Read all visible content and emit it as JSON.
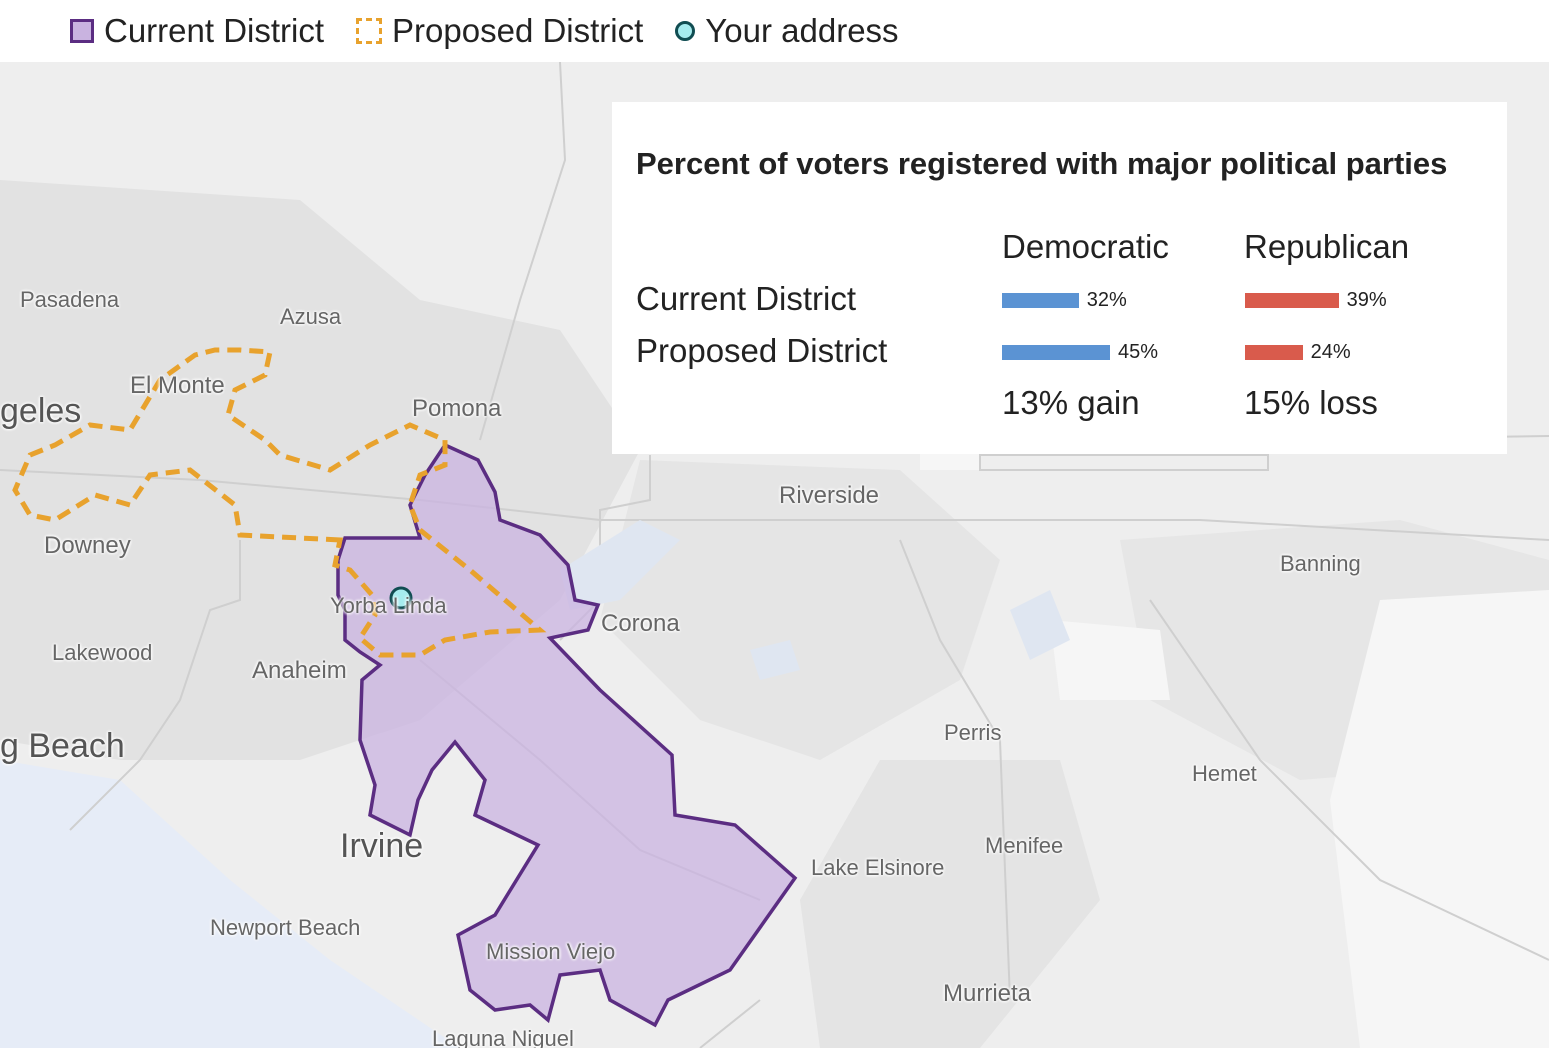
{
  "legend": {
    "current_label": "Current District",
    "proposed_label": "Proposed District",
    "address_label": "Your address",
    "current_fill": "#c9b3e0",
    "current_stroke": "#5b2d82",
    "proposed_stroke": "#e8a22d",
    "address_fill": "#a6ecef",
    "address_stroke": "#114d52"
  },
  "places": {
    "pasadena": "Pasadena",
    "azusa": "Azusa",
    "el_monte": "El Monte",
    "los_angeles": "geles",
    "pomona": "Pomona",
    "downey": "Downey",
    "riverside": "Riverside",
    "banning": "Banning",
    "yorba_linda": "Yorba Linda",
    "corona": "Corona",
    "lakewood": "Lakewood",
    "anaheim": "Anaheim",
    "long_beach": "g Beach",
    "perris": "Perris",
    "hemet": "Hemet",
    "irvine": "Irvine",
    "menifee": "Menifee",
    "lake_elsinore": "Lake Elsinore",
    "newport_beach": "Newport Beach",
    "mission_viejo": "Mission Viejo",
    "murrieta": "Murrieta",
    "laguna_niguel": "Laguna Niguel"
  },
  "panel": {
    "title": "Percent of voters registered with major political parties",
    "col_dem": "Democratic",
    "col_rep": "Republican",
    "rows": [
      {
        "label": "Current District",
        "dem": 32,
        "rep": 39,
        "dem_text": "32%",
        "rep_text": "39%"
      },
      {
        "label": "Proposed District",
        "dem": 45,
        "rep": 24,
        "dem_text": "45%",
        "rep_text": "24%"
      }
    ],
    "dem_change": "13% gain",
    "rep_change": "15% loss",
    "dem_color": "#5b93d3",
    "rep_color": "#d95b4c"
  }
}
